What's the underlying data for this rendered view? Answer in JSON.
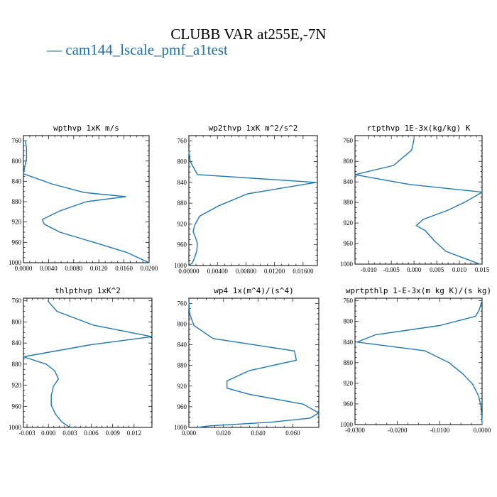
{
  "figure": {
    "title": "CLUBB VAR at255E,-7N",
    "legend": "— cam144_lscale_pmf_a1test",
    "series_color": "#1f77b4",
    "legend_color": "#1f6fa8"
  },
  "chart_data": [
    {
      "type": "line",
      "title": "wpthvp  1xK m/s",
      "series_name": "cam144_lscale_pmf_a1test",
      "xlim": [
        0,
        0.02
      ],
      "ylim": [
        1000,
        750
      ],
      "xticks": [
        "0.0000",
        "0.0040",
        "0.0080",
        "0.0120",
        "0.0160",
        "0.0200"
      ],
      "xtick_values": [
        0,
        0.004,
        0.008,
        0.012,
        0.016,
        0.02
      ],
      "yticks": [
        "760",
        "800",
        "840",
        "880",
        "920",
        "960",
        "1000"
      ],
      "ytick_values": [
        760,
        800,
        840,
        880,
        920,
        960,
        1000
      ],
      "x": [
        0.0003,
        0.0005,
        0.0005,
        0.0002,
        0,
        0.0045,
        0.0097,
        0.0163,
        0.01,
        0.0058,
        0.003,
        0.0033,
        0.0058,
        0.0115,
        0.0165,
        0.02
      ],
      "y": [
        760,
        775,
        795,
        812,
        825,
        845,
        862,
        870,
        880,
        898,
        915,
        924,
        940,
        961,
        980,
        1000
      ]
    },
    {
      "type": "line",
      "title": "wp2thvp  1xK m^2/s^2",
      "series_name": "cam144_lscale_pmf_a1test",
      "xlim": [
        0,
        0.018
      ],
      "ylim": [
        1000,
        750
      ],
      "xticks": [
        "0.00000",
        "0.00400",
        "0.00800",
        "0.01200",
        "0.01600"
      ],
      "xtick_values": [
        0,
        0.004,
        0.008,
        0.012,
        0.016
      ],
      "yticks": [
        "760",
        "800",
        "840",
        "880",
        "920",
        "960",
        "1000"
      ],
      "ytick_values": [
        760,
        800,
        840,
        880,
        920,
        960,
        1000
      ],
      "x": [
        0,
        0.0002,
        0.0012,
        0.0178,
        0.0082,
        0.0042,
        0.0015,
        0.0008,
        0.0006,
        0.0009,
        0.0012,
        0.0011,
        0.0008,
        0.0005,
        0
      ],
      "y": [
        780,
        800,
        825,
        840,
        862,
        885,
        905,
        923,
        935,
        945,
        958,
        972,
        985,
        995,
        1000
      ]
    },
    {
      "type": "line",
      "title": "rtpthvp  1E-3x(kg/kg) K",
      "series_name": "cam144_lscale_pmf_a1test",
      "xlim": [
        -0.013,
        0.015
      ],
      "ylim": [
        1000,
        750
      ],
      "xticks": [
        "-0.010",
        "-0.005",
        "0.000",
        "0.005",
        "0.010",
        "0.015"
      ],
      "xtick_values": [
        -0.01,
        -0.005,
        0,
        0.005,
        0.01,
        0.015
      ],
      "yticks": [
        "760",
        "800",
        "840",
        "880",
        "920",
        "960",
        "1000"
      ],
      "ytick_values": [
        760,
        800,
        840,
        880,
        920,
        960,
        1000
      ],
      "x": [
        0,
        -0.0005,
        -0.0045,
        -0.013,
        -0.001,
        0.015,
        0.0115,
        0.0075,
        0.002,
        0.0005,
        0.0025,
        0.0045,
        0.007,
        0.0115,
        0.0145
      ],
      "y": [
        757,
        778,
        808,
        826,
        845,
        860,
        878,
        895,
        913,
        925,
        935,
        955,
        975,
        990,
        1000
      ]
    },
    {
      "type": "line",
      "title": "thlpthvp  1xK^2",
      "series_name": "cam144_lscale_pmf_a1test",
      "xlim": [
        -0.0035,
        0.0145
      ],
      "ylim": [
        1000,
        755
      ],
      "xticks": [
        "-0.003",
        "0.000",
        "0.003",
        "0.006",
        "0.009",
        "0.012"
      ],
      "xtick_values": [
        -0.003,
        0,
        0.003,
        0.006,
        0.009,
        0.012
      ],
      "yticks": [
        "760",
        "800",
        "840",
        "880",
        "920",
        "960",
        "1000"
      ],
      "ytick_values": [
        760,
        800,
        840,
        880,
        920,
        960,
        1000
      ],
      "x": [
        -0.0001,
        0.0012,
        0.0063,
        0.0145,
        0.006,
        -0.0035,
        -0.0003,
        0.0009,
        0.0014,
        0.0007,
        0.0004,
        0.0004,
        0.001,
        0.0019,
        0.003
      ],
      "y": [
        760,
        780,
        806,
        828,
        843,
        866,
        880,
        893,
        908,
        922,
        940,
        958,
        975,
        990,
        1000
      ]
    },
    {
      "type": "line",
      "title": "wp4  1x(m^4)/(s^4)",
      "series_name": "cam144_lscale_pmf_a1test",
      "xlim": [
        0,
        0.075
      ],
      "ylim": [
        1000,
        750
      ],
      "xticks": [
        "0.000",
        "0.020",
        "0.040",
        "0.060"
      ],
      "xtick_values": [
        0,
        0.02,
        0.04,
        0.06
      ],
      "yticks": [
        "760",
        "800",
        "840",
        "880",
        "920",
        "960",
        "1000"
      ],
      "ytick_values": [
        760,
        800,
        840,
        880,
        920,
        960,
        1000
      ],
      "x": [
        0,
        0.0004,
        0.003,
        0.014,
        0.061,
        0.062,
        0.035,
        0.022,
        0.022,
        0.035,
        0.066,
        0.075,
        0.07,
        0.047,
        0.012,
        0.005
      ],
      "y": [
        755,
        780,
        803,
        828,
        852,
        870,
        890,
        910,
        924,
        936,
        955,
        972,
        982,
        990,
        997,
        1000
      ]
    },
    {
      "type": "line",
      "title": "wprtpthlp  1-E-3x(m kg K)/(s kg)",
      "series_name": "cam144_lscale_pmf_a1test",
      "xlim": [
        -0.03,
        0
      ],
      "ylim": [
        1000,
        755
      ],
      "xticks": [
        "-0.0300",
        "-0.0200",
        "-0.0100",
        "0.0000"
      ],
      "xtick_values": [
        -0.03,
        -0.02,
        -0.01,
        0
      ],
      "yticks": [
        "760",
        "800",
        "840",
        "880",
        "920",
        "960",
        "1000"
      ],
      "ytick_values": [
        760,
        800,
        840,
        880,
        920,
        960,
        1000
      ],
      "x": [
        0,
        -0.0007,
        -0.0015,
        -0.01,
        -0.0252,
        -0.0295,
        -0.0135,
        -0.0078,
        -0.0045,
        -0.0022,
        -0.0008,
        -0.0003,
        -0.0001,
        0
      ],
      "y": [
        760,
        778,
        790,
        808,
        826,
        840,
        857,
        880,
        902,
        922,
        945,
        963,
        980,
        1000
      ]
    }
  ]
}
